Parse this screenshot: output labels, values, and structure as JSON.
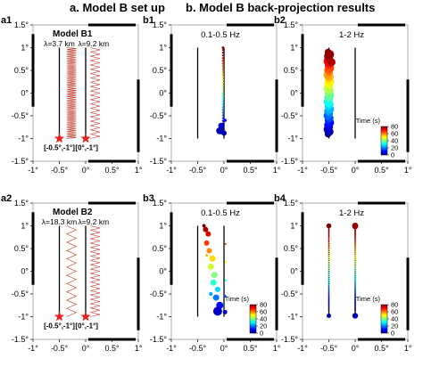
{
  "headers": {
    "left": "a. Model B set up",
    "right": "b. Model B back-projection results"
  },
  "axes": {
    "x_ticks": [
      "-1°",
      "-0.5°",
      "0°",
      "0.5°",
      "1°"
    ],
    "y_ticks": [
      "1.5°",
      "1°",
      "0.5°",
      "0°",
      "-0.5°",
      "-1°",
      "-1.5°"
    ],
    "xlim": [
      -1,
      1
    ],
    "ylim": [
      -1.5,
      1.5
    ]
  },
  "setup_panels": [
    {
      "label": "a1",
      "title": "Model B1",
      "lambda_left": "λ=3.7 km",
      "lambda_right": "λ=9.2 km",
      "corner_left": "[-0.5°,-1°]",
      "corner_right": "[0°,-1°]",
      "wave_cycles_left": 52,
      "wave_cycles_right": 21
    },
    {
      "label": "a2",
      "title": "Model B2",
      "lambda_left": "λ=18.3 km",
      "lambda_right": "λ=9.2 km",
      "corner_left": "[-0.5°,-1°]",
      "corner_right": "[0°,-1°]",
      "wave_cycles_left": 11,
      "wave_cycles_right": 21
    }
  ],
  "result_panels": [
    {
      "label": "b1",
      "freq": "0.1-0.5 Hz",
      "colorbar": false,
      "kind": "lowfreq_single"
    },
    {
      "label": "b2",
      "freq": "1-2 Hz",
      "colorbar": true,
      "kind": "highfreq_single"
    },
    {
      "label": "b3",
      "freq": "0.1-0.5 Hz",
      "colorbar": true,
      "kind": "lowfreq_double"
    },
    {
      "label": "b4",
      "freq": "1-2 Hz",
      "colorbar": true,
      "kind": "highfreq_double"
    }
  ],
  "colorbar": {
    "title": "Time (s)",
    "ticks": [
      "80",
      "60",
      "40",
      "20",
      "0"
    ],
    "range": [
      0,
      80
    ]
  },
  "colors": {
    "fault": "#000000",
    "wave": "#c0392b",
    "star": "#e8201e",
    "frame_thick": "#000000"
  }
}
